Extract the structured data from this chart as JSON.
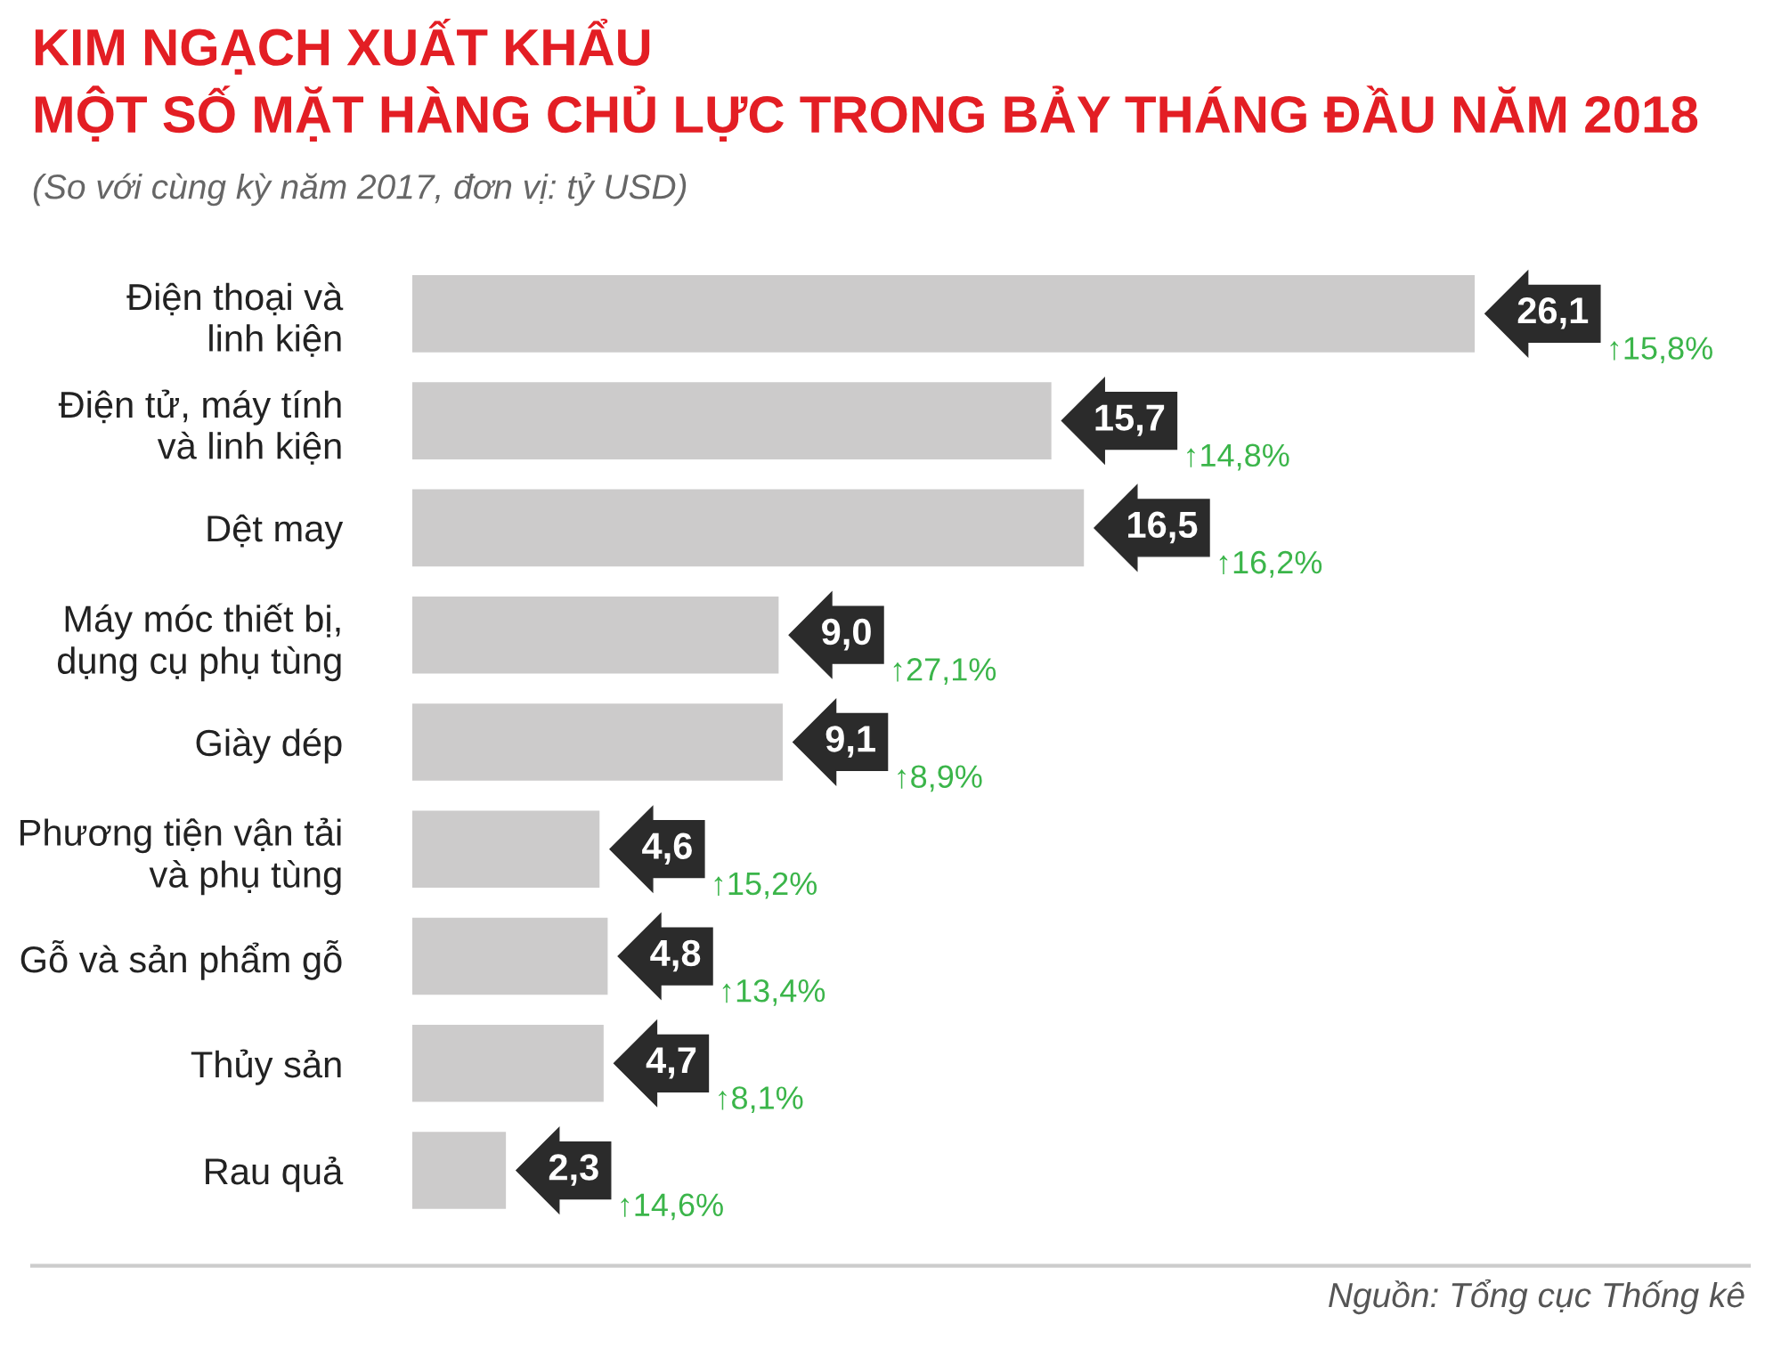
{
  "chart_data": {
    "type": "bar",
    "orientation": "horizontal",
    "title": "KIM NGẠCH XUẤT KHẨU\nMỘT SỐ MẶT HÀNG CHỦ LỰC TRONG BẢY THÁNG ĐẦU NĂM 2018",
    "subtitle": "(So với cùng kỳ năm 2017, đơn vị: tỷ USD)",
    "categories": [
      "Điện thoại và\nlinh kiện",
      "Điện tử, máy tính\nvà linh kiện",
      "Dệt may",
      "Máy móc thiết bị,\ndụng cụ phụ tùng",
      "Giày dép",
      "Phương tiện vận tải\nvà phụ tùng",
      "Gỗ và sản phẩm gỗ",
      "Thủy sản",
      "Rau quả"
    ],
    "values": [
      26.1,
      15.7,
      16.5,
      9.0,
      9.1,
      4.6,
      4.8,
      4.7,
      2.3
    ],
    "value_labels": [
      "26,1",
      "15,7",
      "16,5",
      "9,0",
      "9,1",
      "4,6",
      "4,8",
      "4,7",
      "2,3"
    ],
    "color": "#cccbcb",
    "annotations": [
      "↑15,8%",
      "↑14,8%",
      "↑16,2%",
      "↑27,1%",
      "↑8,9%",
      "↑15,2%",
      "↑13,4%",
      "↑8,1%",
      "↑14,6%",
      "Nguồn: Tổng cục Thống kê"
    ],
    "grid": false,
    "legend": false,
    "tick_labels": "y"
  }
}
